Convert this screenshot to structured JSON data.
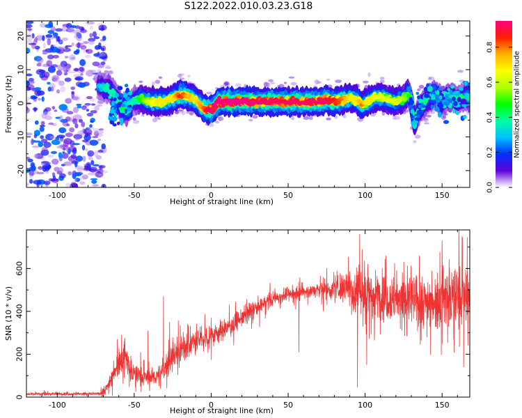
{
  "title": "S122.2022.010.03.23.G18",
  "chart_data": [
    {
      "type": "heatmap",
      "xlabel": "Height of straight line (km)",
      "ylabel": "Frequency (Hz)",
      "xlim": [
        -120,
        168
      ],
      "ylim": [
        -25,
        24.5
      ],
      "xticks": [
        -100,
        -50,
        0,
        50,
        100,
        150
      ],
      "yticks": [
        -20,
        -10,
        0,
        10,
        20
      ],
      "colorbar": {
        "label": "Normalized spectral amplitude",
        "range": [
          0,
          0.95
        ],
        "ticks": [
          "0.0",
          "0.2",
          "0.4",
          "0.6",
          "0.8"
        ],
        "tick_values": [
          0,
          0.2,
          0.4,
          0.6,
          0.8
        ],
        "colors": [
          "#ffffff",
          "#6000d8",
          "#0030ff",
          "#00c0ff",
          "#00ffa0",
          "#00ff00",
          "#b0ff00",
          "#ffff00",
          "#ffb000",
          "#ff2000",
          "#ff0080"
        ]
      },
      "noise_region_x": [
        -120,
        -73
      ],
      "ridge": {
        "x": [
          -73,
          -66,
          -62,
          -58,
          -55,
          -50,
          -45,
          -40,
          -35,
          -30,
          -25,
          -20,
          -15,
          -10,
          -5,
          0,
          5,
          10,
          20,
          30,
          40,
          50,
          60,
          70,
          75,
          80,
          85,
          90,
          95,
          98,
          100,
          105,
          110,
          115,
          120,
          125,
          128,
          130,
          132,
          135,
          140,
          145,
          150,
          155,
          160,
          165,
          168
        ],
        "freq": [
          5,
          4,
          2,
          -1.5,
          -2,
          1,
          1.5,
          0.5,
          0.5,
          0.5,
          1.5,
          2.5,
          2,
          1,
          -1.5,
          -2,
          0.5,
          0.5,
          0.5,
          0.5,
          0.5,
          0.5,
          0.5,
          0.5,
          1,
          0.5,
          1,
          1.5,
          1,
          -0.5,
          0,
          1.5,
          2,
          1,
          0.5,
          1.5,
          3,
          0.5,
          -6,
          -2,
          1,
          2.5,
          0.5,
          2,
          1,
          2,
          1.5
        ],
        "amp": [
          0.25,
          0.35,
          0.3,
          0.4,
          0.35,
          0.3,
          0.45,
          0.55,
          0.6,
          0.6,
          0.6,
          0.75,
          0.65,
          0.6,
          0.7,
          0.85,
          0.85,
          0.85,
          0.85,
          0.8,
          0.8,
          0.8,
          0.8,
          0.8,
          0.8,
          0.75,
          0.7,
          0.6,
          0.6,
          0.7,
          0.6,
          0.6,
          0.55,
          0.55,
          0.55,
          0.5,
          0.45,
          0.35,
          0.4,
          0.35,
          0.35,
          0.35,
          0.35,
          0.35,
          0.35,
          0.35,
          0.35
        ]
      }
    },
    {
      "type": "line",
      "xlabel": "Height of straight line (km)",
      "ylabel": "SNR (10 * v/v)",
      "xlim": [
        -120,
        168
      ],
      "ylim": [
        0,
        780
      ],
      "xticks": [
        -100,
        -50,
        0,
        50,
        100,
        150
      ],
      "yticks": [
        0,
        200,
        400,
        600
      ],
      "color": "#ee3333",
      "series": [
        {
          "x": [
            -120,
            -100,
            -80,
            -73,
            -68,
            -65,
            -60,
            -56,
            -53,
            -50,
            -45,
            -40,
            -35,
            -32,
            -28,
            -25,
            -20,
            -10,
            0,
            10,
            20,
            30,
            40,
            50,
            60,
            70,
            80,
            85,
            90,
            93,
            95,
            97,
            100,
            110,
            120,
            130,
            140,
            150,
            160,
            168
          ],
          "y": [
            15,
            15,
            15,
            15,
            40,
            90,
            170,
            200,
            130,
            110,
            95,
            90,
            100,
            110,
            170,
            190,
            220,
            260,
            290,
            320,
            370,
            420,
            460,
            480,
            490,
            500,
            505,
            510,
            520,
            480,
            520,
            480,
            490,
            470,
            460,
            450,
            450,
            460,
            470,
            470
          ],
          "spread": [
            6,
            6,
            6,
            6,
            25,
            40,
            55,
            60,
            50,
            40,
            40,
            35,
            40,
            45,
            60,
            55,
            55,
            55,
            45,
            40,
            40,
            35,
            30,
            30,
            30,
            35,
            40,
            60,
            80,
            110,
            130,
            110,
            110,
            100,
            100,
            110,
            110,
            120,
            130,
            130
          ]
        }
      ],
      "peaks": [
        {
          "x": -61,
          "y": 270
        },
        {
          "x": -56,
          "y": 255
        },
        {
          "x": -41,
          "y": 310
        },
        {
          "x": -31,
          "y": 470
        },
        {
          "x": -27,
          "y": 350
        },
        {
          "x": -20,
          "y": 335
        },
        {
          "x": 95,
          "y": 775
        },
        {
          "x": 96.5,
          "y": 760
        },
        {
          "x": 98,
          "y": 690
        },
        {
          "x": 150,
          "y": 730
        },
        {
          "x": 163,
          "y": 750
        }
      ],
      "dips": [
        {
          "x": 57,
          "y": 210
        },
        {
          "x": 95,
          "y": 45
        },
        {
          "x": 101,
          "y": 150
        },
        {
          "x": 164,
          "y": 140
        }
      ]
    }
  ]
}
